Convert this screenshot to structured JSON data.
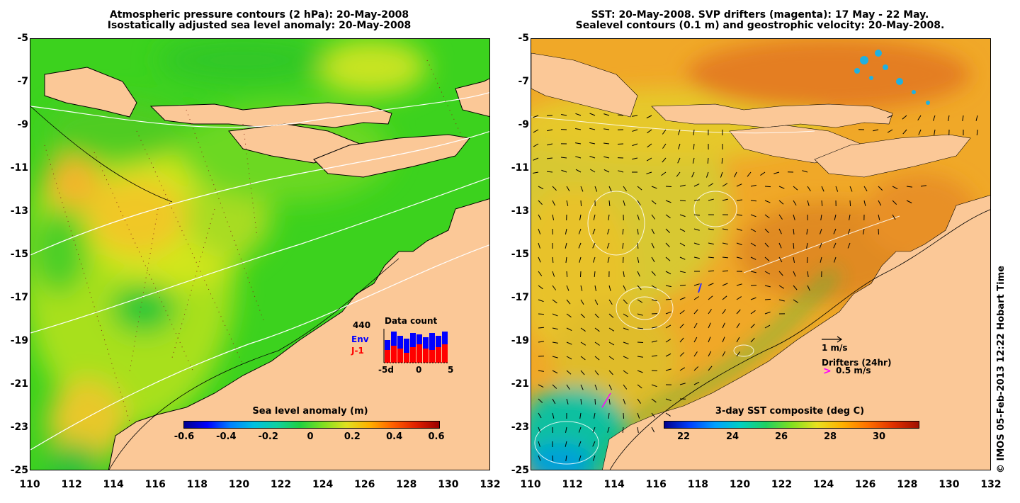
{
  "left": {
    "title_line1": "Atmospheric pressure contours (2 hPa): 20-May-2008",
    "title_line2": "Isostatically adjusted sea level anomaly: 20-May-2008",
    "colorbar_title": "Sea level anomaly (m)",
    "colorbar_ticks": [
      "-0.6",
      "-0.4",
      "-0.2",
      "0",
      "0.2",
      "0.4",
      "0.6"
    ],
    "data_count": {
      "title": "Data count",
      "max_label": "440",
      "env_label": "Env",
      "j1_label": "J-1",
      "xticks": [
        "-5d",
        "0",
        "5"
      ],
      "env_color": "#0000ff",
      "j1_color": "#ff0000"
    }
  },
  "right": {
    "title_line1": "SST: 20-May-2008. SVP drifters (magenta): 17 May - 22 May.",
    "title_line2": "Sealevel contours (0.1 m) and geostrophic velocity: 20-May-2008.",
    "colorbar_title": "3-day SST composite (deg C)",
    "colorbar_ticks": [
      "22",
      "24",
      "26",
      "28",
      "30"
    ],
    "velocity_scale_label": "1 m/s",
    "drifters_label": "Drifters (24hr)",
    "drifter_symbol": ">",
    "drifter_speed_label": "0.5 m/s",
    "drifter_color": "#ff00ff"
  },
  "x_axis_ticks": [
    "110",
    "112",
    "114",
    "116",
    "118",
    "120",
    "122",
    "124",
    "126",
    "128",
    "130",
    "132"
  ],
  "y_axis_ticks": [
    "-5",
    "-7",
    "-9",
    "-11",
    "-13",
    "-15",
    "-17",
    "-19",
    "-21",
    "-23",
    "-25"
  ],
  "credit": "© IMOS 05-Feb-2013 12:22 Hobart Time",
  "colors": {
    "land": "#fbc897"
  }
}
